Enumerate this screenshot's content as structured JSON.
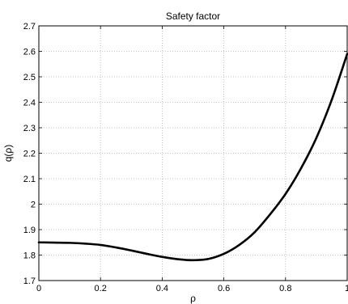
{
  "chart_data": {
    "type": "line",
    "title": "Safety factor",
    "xlabel": "ρ",
    "ylabel": "q(ρ)",
    "xlim": [
      0,
      1
    ],
    "ylim": [
      1.7,
      2.7
    ],
    "grid": true,
    "x_ticks": [
      0,
      0.2,
      0.4,
      0.6,
      0.8,
      1
    ],
    "x_tick_labels": [
      "0",
      "0.2",
      "0.4",
      "0.6",
      "0.8",
      "1"
    ],
    "y_ticks": [
      1.7,
      1.8,
      1.9,
      2.0,
      2.1,
      2.2,
      2.3,
      2.4,
      2.5,
      2.6,
      2.7
    ],
    "y_tick_labels": [
      "1.7",
      "1.8",
      "1.9",
      "2",
      "2.1",
      "2.2",
      "2.3",
      "2.4",
      "2.5",
      "2.6",
      "2.7"
    ],
    "series": [
      {
        "color": "#000000",
        "x": [
          0,
          0.05,
          0.1,
          0.15,
          0.2,
          0.25,
          0.3,
          0.35,
          0.4,
          0.45,
          0.5,
          0.55,
          0.6,
          0.65,
          0.7,
          0.75,
          0.8,
          0.85,
          0.9,
          0.95,
          1.0
        ],
        "y": [
          1.85,
          1.849,
          1.848,
          1.845,
          1.84,
          1.83,
          1.818,
          1.805,
          1.793,
          1.784,
          1.78,
          1.785,
          1.805,
          1.84,
          1.89,
          1.96,
          2.04,
          2.14,
          2.26,
          2.41,
          2.59
        ]
      }
    ]
  }
}
